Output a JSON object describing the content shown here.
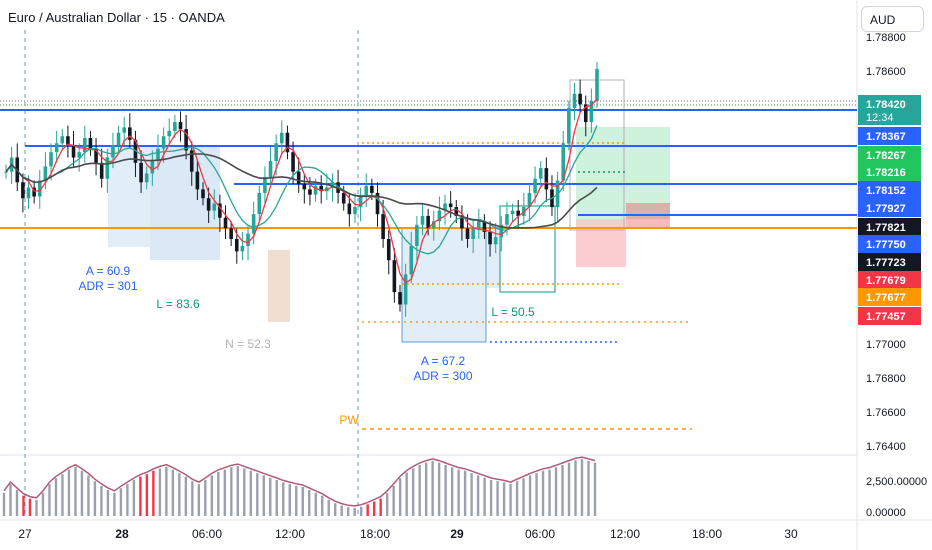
{
  "header": {
    "symbol_title": "Euro / Australian Dollar · 15 · OANDA",
    "currency_button": "AUD"
  },
  "colors": {
    "up": "#26a69a",
    "down": "#131722",
    "blue_level": "#2962ff",
    "orange_level": "#ff9800",
    "red_ma": "#f23645",
    "teal_ma": "#26a69a",
    "black_ma": "#4a4a4a",
    "session_blue": "#5b9bd5",
    "session_teal": "#089981"
  },
  "chart_data": {
    "type": "candlestick",
    "title": "Euro / Australian Dollar · 15 · OANDA",
    "ylim": [
      1.763,
      1.787
    ],
    "y_ticks": [
      "1.78800",
      "1.78600",
      "1.77000",
      "1.76800",
      "1.76600",
      "1.76400"
    ],
    "x_ticks": [
      "27",
      "28",
      "06:00",
      "12:00",
      "18:00",
      "29",
      "06:00",
      "12:00",
      "18:00",
      "30"
    ],
    "close_path": [
      1.779,
      1.7798,
      1.7784,
      1.7775,
      1.7781,
      1.7776,
      1.7785,
      1.7793,
      1.7801,
      1.7806,
      1.781,
      1.7805,
      1.7798,
      1.7801,
      1.7809,
      1.7803,
      1.7795,
      1.7786,
      1.7798,
      1.7805,
      1.7812,
      1.7815,
      1.7808,
      1.7795,
      1.7784,
      1.7789,
      1.7796,
      1.7803,
      1.781,
      1.7813,
      1.7818,
      1.7814,
      1.7802,
      1.779,
      1.778,
      1.7775,
      1.7768,
      1.7772,
      1.7764,
      1.7758,
      1.7752,
      1.7745,
      1.7748,
      1.7755,
      1.7766,
      1.7778,
      1.7787,
      1.7796,
      1.7806,
      1.7812,
      1.7801,
      1.779,
      1.7783,
      1.778,
      1.7777,
      1.7782,
      1.7779,
      1.7781,
      1.7784,
      1.7778,
      1.7772,
      1.7766,
      1.777,
      1.7776,
      1.7782,
      1.7778,
      1.7766,
      1.7752,
      1.774,
      1.7722,
      1.7715,
      1.7732,
      1.7748,
      1.776,
      1.7765,
      1.7758,
      1.7762,
      1.7768,
      1.7772,
      1.777,
      1.7765,
      1.7758,
      1.7752,
      1.7758,
      1.7762,
      1.7756,
      1.7749,
      1.7753,
      1.776,
      1.7766,
      1.7768,
      1.7765,
      1.777,
      1.7778,
      1.7786,
      1.7792,
      1.778,
      1.777,
      1.7785,
      1.7806,
      1.7826,
      1.7834,
      1.7828,
      1.7818,
      1.783,
      1.7848
    ],
    "series": [
      {
        "name": "",
        "type": "ma",
        "color": "#f23645"
      },
      {
        "name": "",
        "type": "ma",
        "color": "#26a69a"
      },
      {
        "name": "",
        "type": "ma",
        "color": "#4a4a4a"
      }
    ],
    "horizontal_levels": [
      {
        "price": 1.7842,
        "color": "#2962ff"
      },
      {
        "price": 1.78367,
        "color": "#2962ff"
      },
      {
        "price": 1.78152,
        "color": "#2962ff"
      },
      {
        "price": 1.77927,
        "color": "#2962ff"
      },
      {
        "price": 1.77821,
        "color": "#ff9800"
      }
    ],
    "price_labels": [
      {
        "text": "1.78420",
        "sub": "12:34",
        "bg": "#26a69a"
      },
      {
        "text": "1.78367",
        "bg": "#2962ff"
      },
      {
        "text": "1.78267",
        "bg": "#22c55e"
      },
      {
        "text": "1.78216",
        "bg": "#22c55e"
      },
      {
        "text": "1.78152",
        "bg": "#2962ff"
      },
      {
        "text": "1.77927",
        "bg": "#2962ff"
      },
      {
        "text": "1.77821",
        "bg": "#131722"
      },
      {
        "text": "1.77750",
        "bg": "#2962ff"
      },
      {
        "text": "1.77723",
        "bg": "#131722"
      },
      {
        "text": "1.77679",
        "bg": "#f23645"
      },
      {
        "text": "1.77677",
        "bg": "#ff9800"
      },
      {
        "text": "1.77457",
        "bg": "#f23645"
      }
    ],
    "annotations": [
      {
        "text": "A = 60.9",
        "color": "#2962ff"
      },
      {
        "text": "ADR = 301",
        "color": "#2962ff"
      },
      {
        "text": "L = 83.6",
        "color": "#089981"
      },
      {
        "text": "N = 52.3",
        "color": "#b0b3b8"
      },
      {
        "text": "A = 67.2",
        "color": "#2962ff"
      },
      {
        "text": "ADR = 300",
        "color": "#2962ff"
      },
      {
        "text": "L = 50.5",
        "color": "#089981"
      },
      {
        "text": "PW",
        "color": "#ff9800"
      }
    ],
    "volume_axis_ticks": [
      "2,500.00000",
      "0.00000"
    ],
    "volume_path": [
      0.4,
      0.55,
      0.45,
      0.35,
      0.3,
      0.28,
      0.4,
      0.55,
      0.65,
      0.72,
      0.8,
      0.85,
      0.78,
      0.7,
      0.6,
      0.52,
      0.45,
      0.4,
      0.48,
      0.55,
      0.62,
      0.68,
      0.72,
      0.78,
      0.82,
      0.85,
      0.8,
      0.74,
      0.68,
      0.6,
      0.55,
      0.62,
      0.7,
      0.76,
      0.8,
      0.84,
      0.86,
      0.82,
      0.78,
      0.74,
      0.7,
      0.66,
      0.62,
      0.58,
      0.55,
      0.52,
      0.5,
      0.45,
      0.4,
      0.35,
      0.28,
      0.22,
      0.18,
      0.15,
      0.14,
      0.16,
      0.2,
      0.25,
      0.3,
      0.4,
      0.52,
      0.65,
      0.75,
      0.82,
      0.88,
      0.92,
      0.95,
      0.92,
      0.88,
      0.84,
      0.8,
      0.78,
      0.74,
      0.7,
      0.66,
      0.62,
      0.6,
      0.58,
      0.55,
      0.6,
      0.65,
      0.7,
      0.74,
      0.78,
      0.8,
      0.84,
      0.88,
      0.92,
      0.96,
      0.98,
      0.95,
      0.92
    ]
  }
}
